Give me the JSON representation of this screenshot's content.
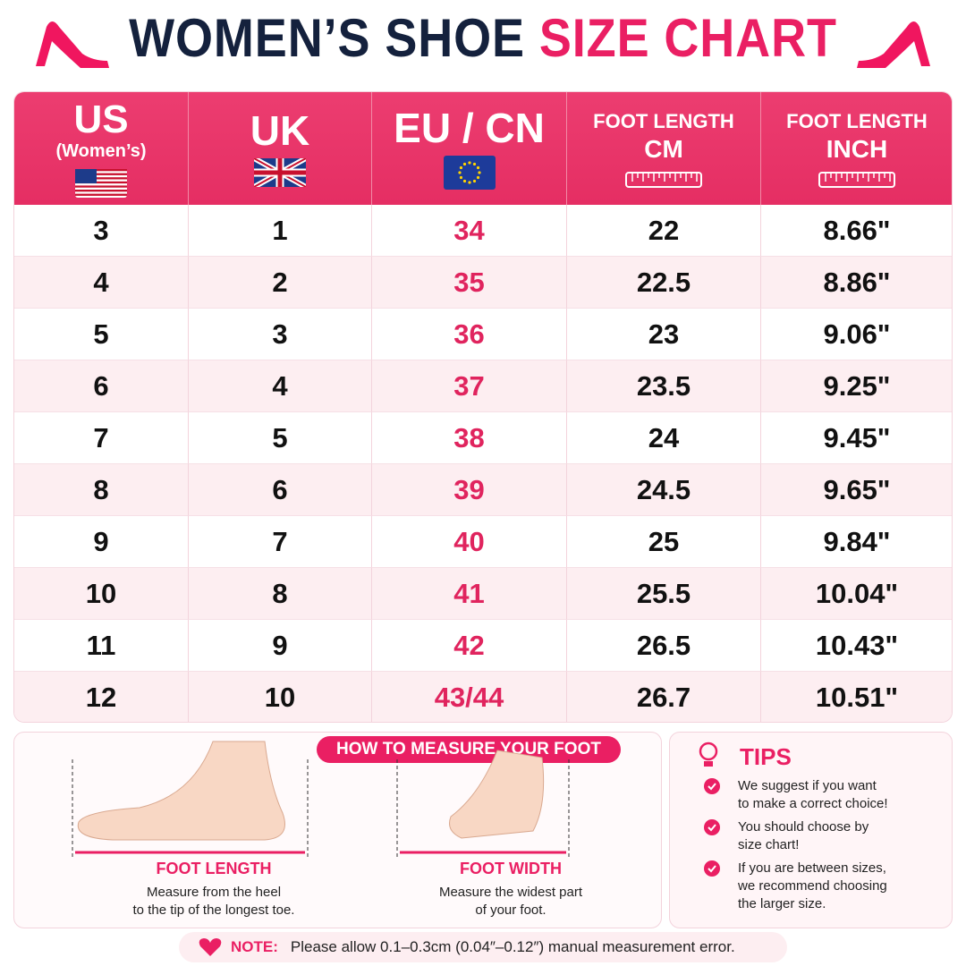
{
  "header": {
    "title_dark": "WOMEN’S SHOE",
    "title_pink": "SIZE CHART"
  },
  "table": {
    "headers": [
      {
        "line1": "US",
        "line2": "(Women’s)"
      },
      {
        "line1": "UK"
      },
      {
        "line1": "EU / CN"
      },
      {
        "line1": "FOOT LENGTH",
        "line2": "CM"
      },
      {
        "line1": "FOOT LENGTH",
        "line2": "INCH"
      }
    ],
    "rows": [
      [
        "3",
        "1",
        "34",
        "22",
        "8.66\""
      ],
      [
        "4",
        "2",
        "35",
        "22.5",
        "8.86\""
      ],
      [
        "5",
        "3",
        "36",
        "23",
        "9.06\""
      ],
      [
        "6",
        "4",
        "37",
        "23.5",
        "9.25\""
      ],
      [
        "7",
        "5",
        "38",
        "24",
        "9.45\""
      ],
      [
        "8",
        "6",
        "39",
        "24.5",
        "9.65\""
      ],
      [
        "9",
        "7",
        "40",
        "25",
        "9.84\""
      ],
      [
        "10",
        "8",
        "41",
        "25.5",
        "10.04\""
      ],
      [
        "11",
        "9",
        "42",
        "26.5",
        "10.43\""
      ],
      [
        "12",
        "10",
        "43/44",
        "26.7",
        "10.51\""
      ]
    ]
  },
  "measure": {
    "title": "HOW TO MEASURE YOUR FOOT",
    "items": [
      {
        "label": "FOOT LENGTH",
        "lines": [
          "Measure from the heel",
          "to the tip of the longest toe."
        ]
      },
      {
        "label": "FOOT WIDTH",
        "lines": [
          "Measure the widest part",
          "of your foot."
        ]
      }
    ]
  },
  "tips": {
    "title": "TIPS",
    "items": [
      [
        "We suggest if you want",
        "to make a correct choice!"
      ],
      [
        "You should choose by",
        "size chart!"
      ],
      [
        "If you are between sizes,",
        "we recommend choosing",
        "the larger size."
      ]
    ]
  },
  "note": {
    "label": "NOTE:",
    "text": "Please allow 0.1–0.3cm (0.04″–0.12″) manual measurement error."
  }
}
